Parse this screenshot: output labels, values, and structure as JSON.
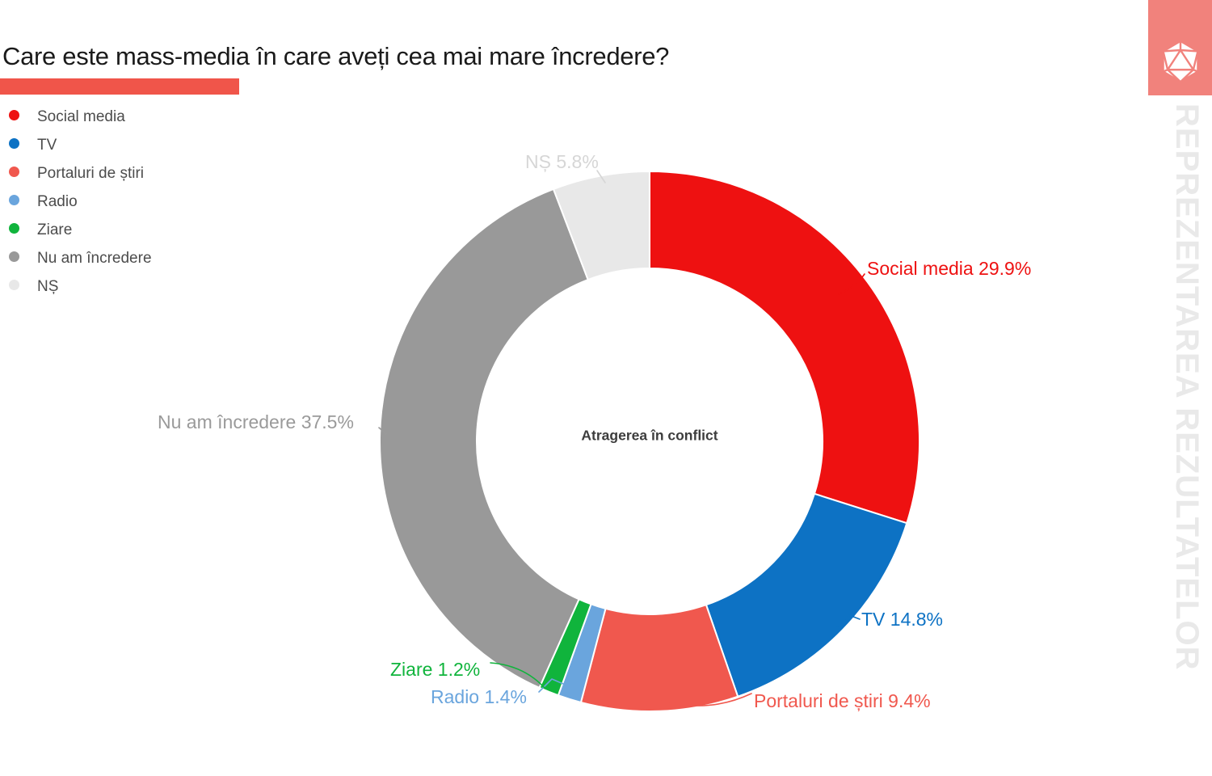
{
  "header": {
    "title": "Care este mass-media în care aveți cea mai mare încredere?",
    "accent_color": "#f0554a"
  },
  "legend": {
    "items": [
      {
        "label": "Social media",
        "color": "#ee1111"
      },
      {
        "label": "TV",
        "color": "#0d72c4"
      },
      {
        "label": "Portaluri de știri",
        "color": "#f0584e"
      },
      {
        "label": "Radio",
        "color": "#6aa5dd"
      },
      {
        "label": "Ziare",
        "color": "#10b43c"
      },
      {
        "label": "Nu am încredere",
        "color": "#999999"
      },
      {
        "label": "NȘ",
        "color": "#e8e8e8"
      }
    ]
  },
  "chart_data": {
    "type": "pie",
    "subtype": "donut",
    "title": "Care este mass-media în care aveți cea mai mare încredere?",
    "center_label": "Atragerea în conflict",
    "categories": [
      "Social media",
      "TV",
      "Portaluri de știri",
      "Radio",
      "Ziare",
      "Nu am încredere",
      "NȘ"
    ],
    "values": [
      29.9,
      14.8,
      9.4,
      1.4,
      1.2,
      37.5,
      5.8
    ],
    "unit": "%",
    "colors": [
      "#ee1111",
      "#0d72c4",
      "#f0584e",
      "#6aa5dd",
      "#10b43c",
      "#999999",
      "#e8e8e8"
    ],
    "labels": [
      "Social media 29.9%",
      "TV 14.8%",
      "Portaluri de știri 9.4%",
      "Radio 1.4%",
      "Ziare 1.2%",
      "Nu am încredere 37.5%",
      "NȘ 5.8%"
    ],
    "label_colors": [
      "#ee1111",
      "#0d72c4",
      "#f0584e",
      "#6aa5dd",
      "#10b43c",
      "#9a9a9a",
      "#d6d6d6"
    ],
    "start_angle": 0,
    "direction": "clockwise",
    "inner_radius_ratio": 0.64,
    "legend_position": "top-left"
  },
  "watermark": {
    "text": "REPREZENTAREA REZULTATELOR",
    "color": "#e9e9e9"
  },
  "logo": {
    "icon": "icosahedron-d20-icon",
    "background": "#f1827c"
  }
}
